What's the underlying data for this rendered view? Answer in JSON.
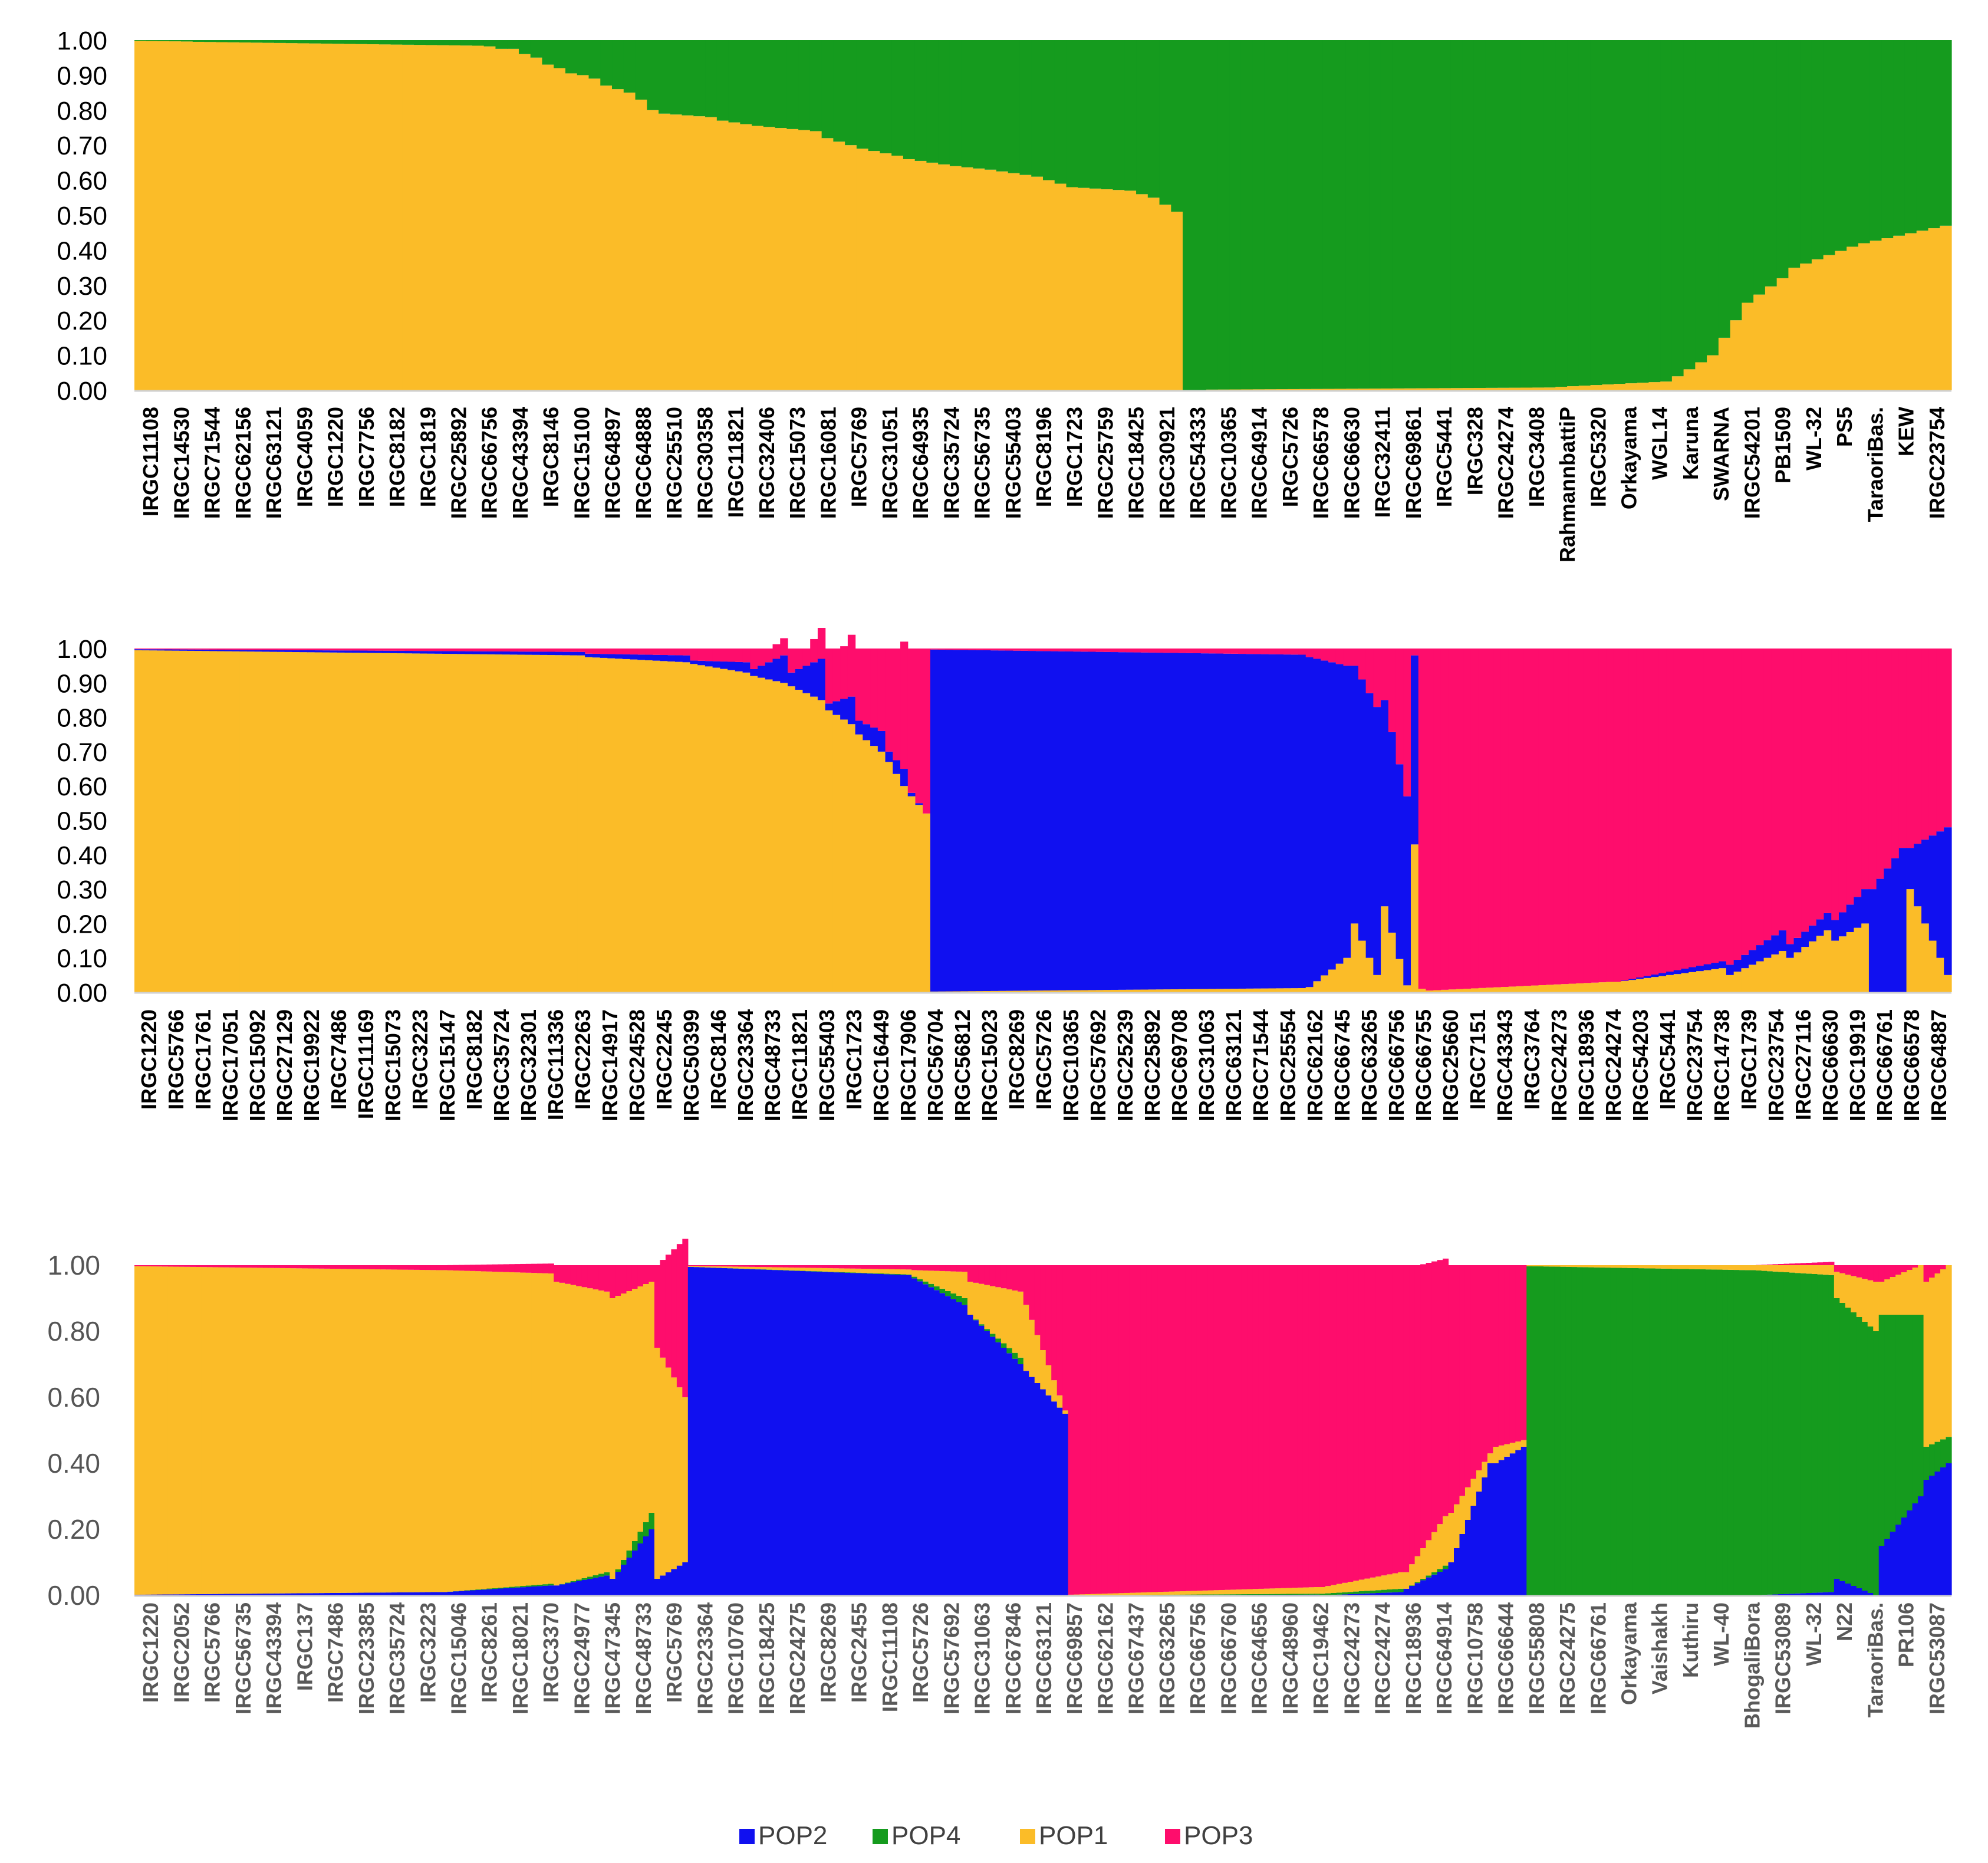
{
  "chart_data": [
    {
      "type": "bar",
      "stacked": true,
      "ylim": [
        0,
        1
      ],
      "yticks": [
        "0.00",
        "0.10",
        "0.20",
        "0.30",
        "0.40",
        "0.50",
        "0.60",
        "0.70",
        "0.80",
        "0.90",
        "1.00"
      ],
      "tick_style": "bold-dark",
      "x_labels": [
        "IRGC11108",
        "IRGC14530",
        "IRGC71544",
        "IRGC62156",
        "IRGC63121",
        "IRGC4059",
        "IRGC1220",
        "IRGC7756",
        "IRGC8182",
        "IRGC1819",
        "IRGC25892",
        "IRGC66756",
        "IRGC43394",
        "IRGC8146",
        "IRGC15100",
        "IRGC64897",
        "IRGC64888",
        "IRGC25510",
        "IRGC30358",
        "IRGC11821",
        "IRGC32406",
        "IRGC15073",
        "IRGC16081",
        "IRGC5769",
        "IRGC31051",
        "IRGC64935",
        "IRGC35724",
        "IRGC56735",
        "IRGC55403",
        "IRGC8196",
        "IRGC1723",
        "IRGC25759",
        "IRGC18425",
        "IRGC30921",
        "IRGC54333",
        "IRGC10365",
        "IRGC64914",
        "IRGC5726",
        "IRGC66578",
        "IRGC66630",
        "IRGC32411",
        "IRGC69861",
        "IRGC5441",
        "IRGC328",
        "IRGC24274",
        "IRGC3408",
        "RahmannbattiP",
        "IRGC5320",
        "Orkayama",
        "WGL14",
        "Karuna",
        "SWARNA",
        "IRGC54201",
        "PB1509",
        "WL-32",
        "PS5",
        "TaraoriBas.",
        "KEW",
        "IRGC23754"
      ],
      "series_order": [
        "POP1",
        "POP4"
      ],
      "segments": [
        {
          "n": 5,
          "POP1": [
            0.998,
            0.996
          ]
        },
        {
          "n": 25,
          "POP1": [
            0.995,
            0.984
          ]
        },
        {
          "n": 2,
          "POP1": [
            0.982,
            0.975
          ]
        },
        {
          "n": 2,
          "POP1": [
            0.975,
            0.96
          ]
        },
        {
          "n": 2,
          "POP1": [
            0.95,
            0.93
          ]
        },
        {
          "n": 2,
          "POP1": [
            0.92,
            0.905
          ]
        },
        {
          "n": 2,
          "POP1": [
            0.9,
            0.89
          ]
        },
        {
          "n": 3,
          "POP1": [
            0.87,
            0.85
          ]
        },
        {
          "n": 2,
          "POP1": [
            0.83,
            0.8
          ]
        },
        {
          "n": 5,
          "POP1": [
            0.79,
            0.78
          ]
        },
        {
          "n": 3,
          "POP1": [
            0.77,
            0.76
          ]
        },
        {
          "n": 6,
          "POP1": [
            0.755,
            0.74
          ]
        },
        {
          "n": 3,
          "POP1": [
            0.72,
            0.7
          ]
        },
        {
          "n": 4,
          "POP1": [
            0.69,
            0.67
          ]
        },
        {
          "n": 4,
          "POP1": [
            0.66,
            0.645
          ]
        },
        {
          "n": 4,
          "POP1": [
            0.64,
            0.63
          ]
        },
        {
          "n": 4,
          "POP1": [
            0.625,
            0.61
          ]
        },
        {
          "n": 2,
          "POP1": [
            0.6,
            0.59
          ]
        },
        {
          "n": 6,
          "POP1": [
            0.58,
            0.57
          ]
        },
        {
          "n": 2,
          "POP1": [
            0.56,
            0.55
          ]
        },
        {
          "n": 2,
          "POP1": [
            0.53,
            0.51
          ]
        },
        {
          "n": 2,
          "POP1": [
            0.0,
            0.0
          ]
        },
        {
          "n": 30,
          "POP1": [
            0.002,
            0.008
          ]
        },
        {
          "n": 10,
          "POP1": [
            0.01,
            0.025
          ]
        },
        {
          "n": 3,
          "POP1": [
            0.04,
            0.08
          ]
        },
        {
          "n": 3,
          "POP1": [
            0.1,
            0.2
          ]
        },
        {
          "n": 4,
          "POP1": [
            0.25,
            0.32
          ]
        },
        {
          "n": 6,
          "POP1": [
            0.35,
            0.41
          ]
        },
        {
          "n": 8,
          "POP1": [
            0.42,
            0.47
          ]
        }
      ]
    },
    {
      "type": "bar",
      "stacked": true,
      "ylim": [
        0,
        1
      ],
      "yticks": [
        "0.00",
        "0.10",
        "0.20",
        "0.30",
        "0.40",
        "0.50",
        "0.60",
        "0.70",
        "0.80",
        "0.90",
        "1.00"
      ],
      "tick_style": "bold-dark",
      "x_labels": [
        "IRGC1220",
        "IRGC5766",
        "IRGC1761",
        "IRGC17051",
        "IRGC15092",
        "IRGC27129",
        "IRGC19922",
        "IRGC7486",
        "IRGC11169",
        "IRGC15073",
        "IRGC3223",
        "IRGC15147",
        "IRGC8182",
        "IRGC35724",
        "IRGC32301",
        "IRGC11336",
        "IRGC2263",
        "IRGC14917",
        "IRGC24528",
        "IRGC2245",
        "IRGC50399",
        "IRGC8146",
        "IRGC23364",
        "IRGC48733",
        "IRGC11821",
        "IRGC55403",
        "IRGC1723",
        "IRGC16449",
        "IRGC17906",
        "IRGC56704",
        "IRGC56812",
        "IRGC15023",
        "IRGC8269",
        "IRGC5726",
        "IRGC10365",
        "IRGC57692",
        "IRGC25239",
        "IRGC25892",
        "IRGC69708",
        "IRGC31063",
        "IRGC63121",
        "IRGC71544",
        "IRGC25554",
        "IRGC62162",
        "IRGC66745",
        "IRGC63265",
        "IRGC66756",
        "IRGC66755",
        "IRGC25660",
        "IRGC7151",
        "IRGC43343",
        "IRGC3764",
        "IRGC24273",
        "IRGC18936",
        "IRGC24274",
        "IRGC54203",
        "IRGC5441",
        "IRGC23754",
        "IRGC14738",
        "IRGC1739",
        "IRGC23754",
        "IRGC27116",
        "IRGC66630",
        "IRGC19919",
        "IRGC66761",
        "IRGC66578",
        "IRGC64887"
      ],
      "series_order": [
        "POP1",
        "POP2",
        "POP3"
      ],
      "segments": [
        {
          "n": 60,
          "POP1": [
            0.995,
            0.98
          ],
          "POP2": [
            0.003,
            0.01
          ]
        },
        {
          "n": 14,
          "POP1": [
            0.975,
            0.96
          ],
          "POP2": [
            0.01,
            0.02
          ],
          "POP3": [
            0.01,
            0.02
          ]
        },
        {
          "n": 8,
          "POP1": [
            0.955,
            0.93
          ],
          "POP2": [
            0.01,
            0.03
          ],
          "POP3": [
            0.02,
            0.03
          ]
        },
        {
          "n": 5,
          "POP1": [
            0.92,
            0.9
          ],
          "POP2": [
            0.02,
            0.08
          ],
          "POP3": [
            0.02,
            0.05
          ]
        },
        {
          "n": 5,
          "POP1": [
            0.89,
            0.85
          ],
          "POP2": [
            0.04,
            0.12
          ],
          "POP3": [
            0.0,
            0.09
          ]
        },
        {
          "n": 4,
          "POP1": [
            0.82,
            0.78
          ],
          "POP2": [
            0.02,
            0.08
          ],
          "POP3": [
            0.1,
            0.18
          ]
        },
        {
          "n": 4,
          "POP1": [
            0.75,
            0.7
          ],
          "POP2": [
            0.04,
            0.06
          ],
          "POP3": [
            0.15,
            0.24
          ]
        },
        {
          "n": 3,
          "POP1": [
            0.67,
            0.6
          ],
          "POP2": [
            0.03,
            0.05
          ],
          "POP3": [
            0.22,
            0.37
          ]
        },
        {
          "n": 3,
          "POP1": [
            0.57,
            0.52
          ],
          "POP2": [
            0.01,
            0.0
          ],
          "POP3": [
            0.42,
            0.48
          ]
        },
        {
          "n": 50,
          "POP1": [
            0.002,
            0.012
          ],
          "POP2": [
            0.995,
            0.97
          ],
          "POP3": [
            0.003,
            0.018
          ]
        },
        {
          "n": 6,
          "POP1": [
            0.015,
            0.1
          ],
          "POP2": [
            0.96,
            0.85
          ],
          "POP3": [
            0.02,
            0.05
          ]
        },
        {
          "n": 4,
          "POP1": [
            0.2,
            0.05
          ],
          "POP2": [
            0.75,
            0.78
          ],
          "POP3": [
            0.05,
            0.17
          ]
        },
        {
          "n": 4,
          "POP1": [
            0.25,
            0.02
          ],
          "POP2": [
            0.6,
            0.55
          ],
          "POP3": [
            0.15,
            0.43
          ]
        },
        {
          "n": 2,
          "POP1": [
            0.43,
            0.01
          ],
          "POP2": [
            0.55,
            0.0
          ],
          "POP3": [
            0.02,
            0.99
          ]
        },
        {
          "n": 25,
          "POP1": [
            0.005,
            0.03
          ],
          "POP2": [
            0.0,
            0.0
          ],
          "POP3": [
            0.995,
            0.97
          ]
        },
        {
          "n": 15,
          "POP1": [
            0.03,
            0.07
          ],
          "POP2": [
            0.0,
            0.02
          ],
          "POP3": [
            0.97,
            0.91
          ]
        },
        {
          "n": 8,
          "POP1": [
            0.05,
            0.12
          ],
          "POP2": [
            0.03,
            0.06
          ],
          "POP3": [
            0.92,
            0.82
          ]
        },
        {
          "n": 6,
          "POP1": [
            0.1,
            0.18
          ],
          "POP2": [
            0.04,
            0.05
          ],
          "POP3": [
            0.86,
            0.77
          ]
        },
        {
          "n": 5,
          "POP1": [
            0.15,
            0.2
          ],
          "POP2": [
            0.06,
            0.1
          ],
          "POP3": [
            0.79,
            0.7
          ]
        },
        {
          "n": 5,
          "POP1": [
            0.0,
            0.0
          ],
          "POP2": [
            0.3,
            0.42
          ],
          "POP3": [
            0.7,
            0.58
          ]
        },
        {
          "n": 6,
          "POP1": [
            0.3,
            0.05
          ],
          "POP2": [
            0.12,
            0.43
          ],
          "POP3": [
            0.58,
            0.52
          ]
        }
      ]
    },
    {
      "type": "bar",
      "stacked": true,
      "ylim": [
        0,
        1
      ],
      "yticks": [
        "0.00",
        "0.20",
        "0.40",
        "0.60",
        "0.80",
        "1.00"
      ],
      "tick_style": "light",
      "x_labels": [
        "IRGC1220",
        "IRGC2052",
        "IRGC5766",
        "IRGC56735",
        "IRGC43394",
        "IRGC137",
        "IRGC7486",
        "IRGC23385",
        "IRGC35724",
        "IRGC3223",
        "IRGC15046",
        "IRGC8261",
        "IRGC18021",
        "IRGC3370",
        "IRGC24977",
        "IRGC47345",
        "IRGC48733",
        "IRGC5769",
        "IRGC23364",
        "IRGC10760",
        "IRGC18425",
        "IRGC24275",
        "IRGC8269",
        "IRGC2455",
        "IRGC11108",
        "IRGC5726",
        "IRGC57692",
        "IRGC31063",
        "IRGC67846",
        "IRGC63121",
        "IRGC69857",
        "IRGC62162",
        "IRGC67437",
        "IRGC63265",
        "IRGC66756",
        "IRGC66760",
        "IRGC64656",
        "IRGC48960",
        "IRGC19462",
        "IRGC24273",
        "IRGC24274",
        "IRGC18936",
        "IRGC64914",
        "IRGC10758",
        "IRGC66644",
        "IRGC55808",
        "IRGC24275",
        "IRGC66761",
        "Orkayama",
        "Vaishakh",
        "Kuthiru",
        "WL-40",
        "BhogaliBora",
        "IRGC53089",
        "WL-32",
        "N22",
        "TaraoriBas.",
        "PR106",
        "IRGC53087"
      ],
      "series_order": [
        "POP2",
        "POP4",
        "POP1",
        "POP3"
      ],
      "segments": [
        {
          "n": 55,
          "POP2": [
            0.002,
            0.01
          ],
          "POP4": [
            0.0,
            0.0
          ],
          "POP1": [
            0.995,
            0.975
          ],
          "POP3": [
            0.003,
            0.015
          ]
        },
        {
          "n": 20,
          "POP2": [
            0.01,
            0.03
          ],
          "POP4": [
            0.0,
            0.005
          ],
          "POP1": [
            0.975,
            0.94
          ],
          "POP3": [
            0.015,
            0.03
          ]
        },
        {
          "n": 10,
          "POP2": [
            0.03,
            0.06
          ],
          "POP4": [
            0.0,
            0.01
          ],
          "POP1": [
            0.92,
            0.85
          ],
          "POP3": [
            0.04,
            0.08
          ]
        },
        {
          "n": 8,
          "POP2": [
            0.05,
            0.2
          ],
          "POP4": [
            0.0,
            0.05
          ],
          "POP1": [
            0.85,
            0.7
          ],
          "POP3": [
            0.1,
            0.05
          ]
        },
        {
          "n": 6,
          "POP2": [
            0.05,
            0.1
          ],
          "POP4": [
            0.0,
            0.0
          ],
          "POP1": [
            0.7,
            0.5
          ],
          "POP3": [
            0.25,
            0.48
          ]
        },
        {
          "n": 40,
          "POP2": [
            0.995,
            0.97
          ],
          "POP4": [
            0.0,
            0.002
          ],
          "POP1": [
            0.003,
            0.015
          ],
          "POP3": [
            0.002,
            0.01
          ]
        },
        {
          "n": 10,
          "POP2": [
            0.96,
            0.88
          ],
          "POP4": [
            0.005,
            0.02
          ],
          "POP1": [
            0.02,
            0.08
          ],
          "POP3": [
            0.01,
            0.02
          ]
        },
        {
          "n": 10,
          "POP2": [
            0.85,
            0.7
          ],
          "POP4": [
            0.0,
            0.02
          ],
          "POP1": [
            0.1,
            0.2
          ],
          "POP3": [
            0.05,
            0.06
          ]
        },
        {
          "n": 8,
          "POP2": [
            0.68,
            0.55
          ],
          "POP4": [
            0.0,
            0.0
          ],
          "POP1": [
            0.2,
            0.01
          ],
          "POP3": [
            0.1,
            0.44
          ]
        },
        {
          "n": 45,
          "POP2": [
            0.0,
            0.002
          ],
          "POP4": [
            0.0,
            0.003
          ],
          "POP1": [
            0.002,
            0.02
          ],
          "POP3": [
            0.998,
            0.975
          ]
        },
        {
          "n": 15,
          "POP2": [
            0.0,
            0.01
          ],
          "POP4": [
            0.005,
            0.01
          ],
          "POP1": [
            0.02,
            0.05
          ],
          "POP3": [
            0.975,
            0.93
          ]
        },
        {
          "n": 8,
          "POP2": [
            0.02,
            0.08
          ],
          "POP4": [
            0.0,
            0.01
          ],
          "POP1": [
            0.05,
            0.15
          ],
          "POP3": [
            0.92,
            0.78
          ]
        },
        {
          "n": 8,
          "POP2": [
            0.1,
            0.4
          ],
          "POP4": [
            0.0,
            0.0
          ],
          "POP1": [
            0.15,
            0.03
          ],
          "POP3": [
            0.75,
            0.57
          ]
        },
        {
          "n": 6,
          "POP2": [
            0.4,
            0.45
          ],
          "POP4": [
            0.0,
            0.0
          ],
          "POP1": [
            0.05,
            0.02
          ],
          "POP3": [
            0.55,
            0.52
          ]
        },
        {
          "n": 40,
          "POP2": [
            0.0,
            0.0
          ],
          "POP4": [
            0.997,
            0.985
          ],
          "POP1": [
            0.003,
            0.015
          ],
          "POP3": [
            0.0,
            0.0
          ]
        },
        {
          "n": 15,
          "POP2": [
            0.0,
            0.01
          ],
          "POP4": [
            0.985,
            0.96
          ],
          "POP1": [
            0.015,
            0.03
          ],
          "POP3": [
            0.0,
            0.01
          ]
        },
        {
          "n": 8,
          "POP2": [
            0.05,
            0.0
          ],
          "POP4": [
            0.85,
            0.8
          ],
          "POP1": [
            0.08,
            0.15
          ],
          "POP3": [
            0.02,
            0.05
          ]
        },
        {
          "n": 8,
          "POP2": [
            0.15,
            0.3
          ],
          "POP4": [
            0.7,
            0.55
          ],
          "POP1": [
            0.1,
            0.15
          ],
          "POP3": [
            0.05,
            0.0
          ]
        },
        {
          "n": 5,
          "POP2": [
            0.35,
            0.4
          ],
          "POP4": [
            0.1,
            0.08
          ],
          "POP1": [
            0.5,
            0.52
          ],
          "POP3": [
            0.05,
            0.0
          ]
        }
      ]
    }
  ],
  "legend": {
    "items": [
      {
        "name": "POP2",
        "color": "#1010f0"
      },
      {
        "name": "POP4",
        "color": "#159b1e"
      },
      {
        "name": "POP1",
        "color": "#fbbc28"
      },
      {
        "name": "POP3",
        "color": "#fe0d6c"
      }
    ]
  }
}
